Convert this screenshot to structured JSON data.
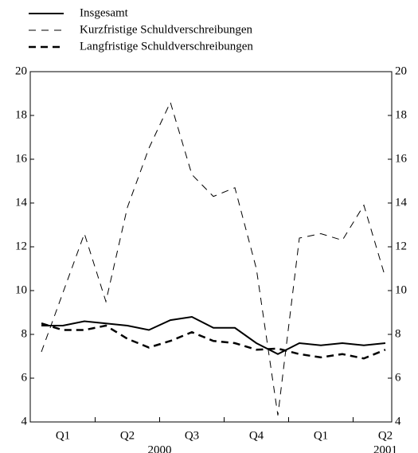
{
  "chart_data": {
    "type": "line",
    "categories": [
      null,
      "Q1",
      null,
      null,
      "Q2",
      null,
      null,
      "Q3",
      null,
      null,
      "Q4",
      null,
      null,
      "Q1",
      null,
      null,
      "Q2"
    ],
    "years": [
      "2000",
      "2001"
    ],
    "series": [
      {
        "name": "Insgesamt",
        "color": "#000000",
        "dash": "solid",
        "line_width": 2,
        "values": [
          8.4,
          8.4,
          8.6,
          8.5,
          8.4,
          8.2,
          8.65,
          8.8,
          8.3,
          8.3,
          7.6,
          7.1,
          7.6,
          7.5,
          7.6,
          7.5,
          7.6
        ]
      },
      {
        "name": "Kurzfristige Schuldverschreibungen",
        "color": "#000000",
        "dash": "dashed",
        "line_width": 1,
        "values": [
          7.2,
          9.9,
          12.6,
          9.5,
          13.8,
          16.5,
          18.6,
          15.3,
          14.3,
          14.7,
          11.0,
          4.3,
          12.4,
          12.6,
          12.3,
          13.9,
          10.6
        ]
      },
      {
        "name": "Langfristige Schuldverschreibungen",
        "color": "#000000",
        "dash": "dashed",
        "line_width": 2.5,
        "values": [
          8.5,
          8.2,
          8.2,
          8.4,
          7.8,
          7.4,
          7.7,
          8.1,
          7.7,
          7.6,
          7.3,
          7.35,
          7.1,
          6.95,
          7.1,
          6.9,
          7.3
        ]
      }
    ],
    "ylim": [
      4,
      20
    ],
    "yticks": [
      4,
      6,
      8,
      10,
      12,
      14,
      16,
      18,
      20
    ],
    "legend": "top-left"
  }
}
